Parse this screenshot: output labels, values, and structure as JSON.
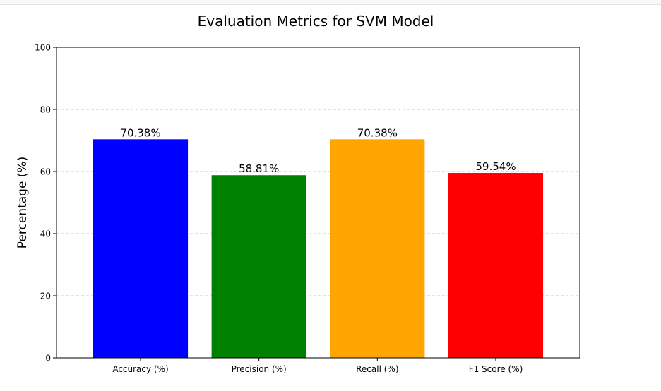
{
  "chart_data": {
    "type": "bar",
    "title": "Evaluation Metrics for SVM Model",
    "xlabel": "",
    "ylabel": "Percentage (%)",
    "categories": [
      "Accuracy (%)",
      "Precision (%)",
      "Recall (%)",
      "F1 Score (%)"
    ],
    "values": [
      70.38,
      58.81,
      70.38,
      59.54
    ],
    "value_labels": [
      "70.38%",
      "58.81%",
      "70.38%",
      "59.54%"
    ],
    "colors": [
      "#0000ff",
      "#008000",
      "#ffa500",
      "#ff0000"
    ],
    "ylim": [
      0,
      100
    ],
    "yticks": [
      0,
      20,
      40,
      60,
      80,
      100
    ],
    "ytick_labels": [
      "0",
      "20",
      "40",
      "60",
      "80",
      "100"
    ],
    "grid": "y-dashed",
    "legend": "none"
  }
}
